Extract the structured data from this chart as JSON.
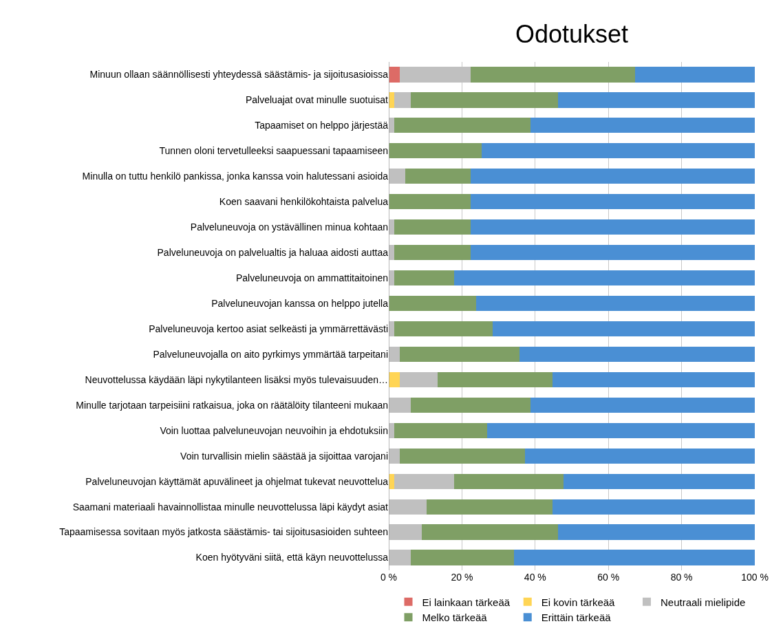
{
  "chart_data": {
    "type": "bar",
    "orientation": "horizontal",
    "stacked": true,
    "title": "Odotukset",
    "categories": [
      "Minuun ollaan säännöllisesti yhteydessä säästämis- ja sijoitusasioissa",
      "Palveluajat ovat minulle suotuisat",
      "Tapaamiset on helppo järjestää",
      "Tunnen oloni tervetulleeksi saapuessani tapaamiseen",
      "Minulla on tuttu henkilö pankissa, jonka kanssa voin halutessani asioida",
      "Koen saavani henkilökohtaista palvelua",
      "Palveluneuvoja on ystävällinen minua kohtaan",
      "Palveluneuvoja on palvelualtis ja haluaa aidosti auttaa",
      "Palveluneuvoja on ammattitaitoinen",
      "Palveluneuvojan kanssa on helppo jutella",
      "Palveluneuvoja kertoo asiat selkeästi ja ymmärrettävästi",
      "Palveluneuvojalla on aito pyrkimys ymmärtää tarpeitani",
      "Neuvottelussa käydään läpi nykytilanteen lisäksi myös tulevaisuuden…",
      "Minulle tarjotaan tarpeisiini ratkaisua, joka on räätälöity tilanteeni mukaan",
      "Voin luottaa palveluneuvojan neuvoihin ja ehdotuksiin",
      "Voin turvallisin mielin säästää ja sijoittaa varojani",
      "Palveluneuvojan käyttämät apuvälineet ja ohjelmat tukevat neuvottelua",
      "Saamani materiaali havainnollistaa minulle neuvottelussa läpi käydyt asiat",
      "Tapaamisessa sovitaan myös jatkosta säästämis- tai sijoitusasioiden suhteen",
      "Koen hyötyväni siitä, että käyn neuvottelussa"
    ],
    "series": [
      {
        "name": "Ei lainkaan tärkeää",
        "color": "#dd6b66",
        "values": [
          3,
          0,
          0,
          0,
          0,
          0,
          0,
          0,
          0,
          0,
          0,
          0,
          0,
          0,
          0,
          0,
          0,
          0,
          0,
          0
        ]
      },
      {
        "name": "Ei kovin tärkeää",
        "color": "#ffd555",
        "values": [
          0,
          1.5,
          0,
          0,
          0,
          0,
          0,
          0,
          0,
          0,
          0,
          0,
          3,
          0,
          0,
          0,
          1.5,
          0,
          0,
          0
        ]
      },
      {
        "name": "Neutraali mielipide",
        "color": "#c0c0c0",
        "values": [
          19.4,
          4.5,
          1.5,
          0,
          4.5,
          0,
          1.5,
          1.5,
          1.5,
          0,
          1.5,
          3,
          10.4,
          6,
          1.5,
          3,
          16.4,
          10.4,
          9,
          6
        ]
      },
      {
        "name": "Melko tärkeää",
        "color": "#7f9f65",
        "values": [
          44.8,
          40.3,
          37.3,
          25.4,
          17.9,
          22.4,
          20.9,
          20.9,
          16.4,
          23.9,
          26.9,
          32.8,
          31.4,
          32.8,
          25.4,
          34.3,
          29.9,
          34.4,
          37.3,
          28.3
        ]
      },
      {
        "name": "Erittäin tärkeää",
        "color": "#4a8fd4",
        "values": [
          32.8,
          53.7,
          61.2,
          74.6,
          77.6,
          77.6,
          77.6,
          77.6,
          82.1,
          76.1,
          71.6,
          64.2,
          55.2,
          61.2,
          73.1,
          62.7,
          52.2,
          55.2,
          53.7,
          65.7
        ]
      }
    ],
    "xlim": [
      0,
      100
    ],
    "xticks": [
      {
        "value": 0,
        "label": "0 %"
      },
      {
        "value": 20,
        "label": "20 %"
      },
      {
        "value": 40,
        "label": "40 %"
      },
      {
        "value": 60,
        "label": "60 %"
      },
      {
        "value": 80,
        "label": "80 %"
      },
      {
        "value": 100,
        "label": "100 %"
      }
    ],
    "grid": "x",
    "legend": "bottom"
  }
}
